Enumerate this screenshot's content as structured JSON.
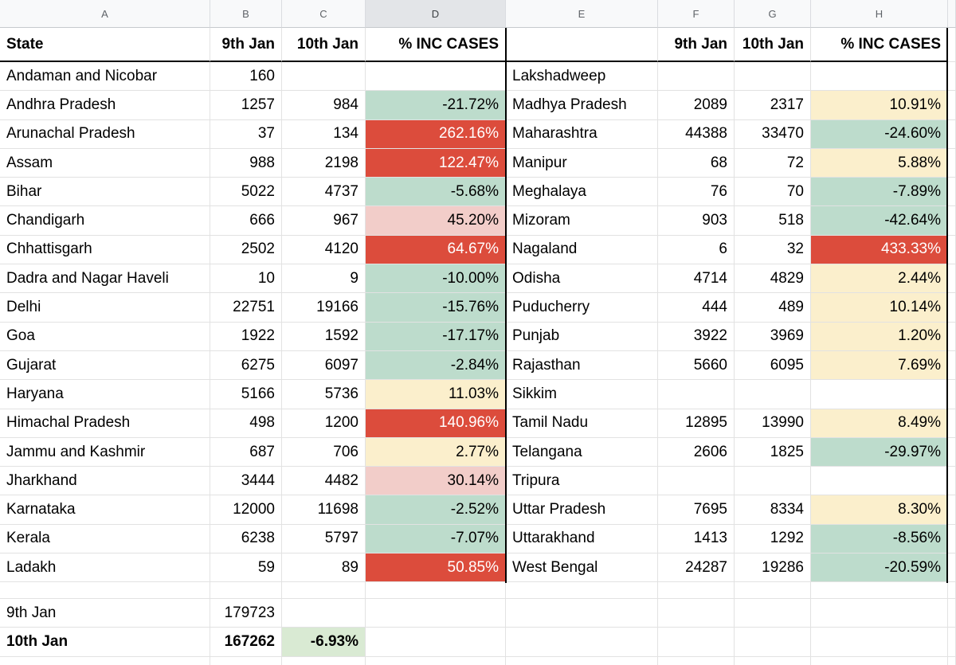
{
  "sheet": {
    "column_letters": [
      "A",
      "B",
      "C",
      "D",
      "E",
      "F",
      "G",
      "H"
    ],
    "selected_column_letter": "D",
    "left_header": [
      "State",
      "9th Jan",
      "10th Jan",
      "% INC CASES"
    ],
    "right_header": [
      "",
      "9th Jan",
      "10th Jan",
      "% INC CASES"
    ],
    "rows": [
      {
        "l": [
          "Andaman and Nicobar",
          "160",
          "",
          ""
        ],
        "lc": "",
        "r": [
          "Lakshadweep",
          "",
          "",
          ""
        ],
        "rc": ""
      },
      {
        "l": [
          "Andhra Pradesh",
          "1257",
          "984",
          "-21.72%"
        ],
        "lc": "green",
        "r": [
          "Madhya Pradesh",
          "2089",
          "2317",
          "10.91%"
        ],
        "rc": "yellow"
      },
      {
        "l": [
          "Arunachal Pradesh",
          "37",
          "134",
          "262.16%"
        ],
        "lc": "red",
        "r": [
          "Maharashtra",
          "44388",
          "33470",
          "-24.60%"
        ],
        "rc": "green"
      },
      {
        "l": [
          "Assam",
          "988",
          "2198",
          "122.47%"
        ],
        "lc": "red",
        "r": [
          "Manipur",
          "68",
          "72",
          "5.88%"
        ],
        "rc": "yellow"
      },
      {
        "l": [
          "Bihar",
          "5022",
          "4737",
          "-5.68%"
        ],
        "lc": "green",
        "r": [
          "Meghalaya",
          "76",
          "70",
          "-7.89%"
        ],
        "rc": "green"
      },
      {
        "l": [
          "Chandigarh",
          "666",
          "967",
          "45.20%"
        ],
        "lc": "pink",
        "r": [
          "Mizoram",
          "903",
          "518",
          "-42.64%"
        ],
        "rc": "green"
      },
      {
        "l": [
          "Chhattisgarh",
          "2502",
          "4120",
          "64.67%"
        ],
        "lc": "red",
        "r": [
          "Nagaland",
          "6",
          "32",
          "433.33%"
        ],
        "rc": "red"
      },
      {
        "l": [
          "Dadra and Nagar Haveli",
          "10",
          "9",
          "-10.00%"
        ],
        "lc": "green",
        "r": [
          "Odisha",
          "4714",
          "4829",
          "2.44%"
        ],
        "rc": "yellow"
      },
      {
        "l": [
          "Delhi",
          "22751",
          "19166",
          "-15.76%"
        ],
        "lc": "green",
        "r": [
          "Puducherry",
          "444",
          "489",
          "10.14%"
        ],
        "rc": "yellow"
      },
      {
        "l": [
          "Goa",
          "1922",
          "1592",
          "-17.17%"
        ],
        "lc": "green",
        "r": [
          "Punjab",
          "3922",
          "3969",
          "1.20%"
        ],
        "rc": "yellow"
      },
      {
        "l": [
          "Gujarat",
          "6275",
          "6097",
          "-2.84%"
        ],
        "lc": "green",
        "r": [
          "Rajasthan",
          "5660",
          "6095",
          "7.69%"
        ],
        "rc": "yellow"
      },
      {
        "l": [
          "Haryana",
          "5166",
          "5736",
          "11.03%"
        ],
        "lc": "yellow",
        "r": [
          "Sikkim",
          "",
          "",
          ""
        ],
        "rc": ""
      },
      {
        "l": [
          "Himachal Pradesh",
          "498",
          "1200",
          "140.96%"
        ],
        "lc": "red",
        "r": [
          "Tamil Nadu",
          "12895",
          "13990",
          "8.49%"
        ],
        "rc": "yellow"
      },
      {
        "l": [
          "Jammu and Kashmir",
          "687",
          "706",
          "2.77%"
        ],
        "lc": "yellow",
        "r": [
          "Telangana",
          "2606",
          "1825",
          "-29.97%"
        ],
        "rc": "green"
      },
      {
        "l": [
          "Jharkhand",
          "3444",
          "4482",
          "30.14%"
        ],
        "lc": "pink",
        "r": [
          "Tripura",
          "",
          "",
          ""
        ],
        "rc": ""
      },
      {
        "l": [
          "Karnataka",
          "12000",
          "11698",
          "-2.52%"
        ],
        "lc": "green",
        "r": [
          "Uttar Pradesh",
          "7695",
          "8334",
          "8.30%"
        ],
        "rc": "yellow"
      },
      {
        "l": [
          "Kerala",
          "6238",
          "5797",
          "-7.07%"
        ],
        "lc": "green",
        "r": [
          "Uttarakhand",
          "1413",
          "1292",
          "-8.56%"
        ],
        "rc": "green"
      },
      {
        "l": [
          "Ladakh",
          "59",
          "89",
          "50.85%"
        ],
        "lc": "red",
        "r": [
          "West Bengal",
          "24287",
          "19286",
          "-20.59%"
        ],
        "rc": "green"
      }
    ],
    "summary": {
      "row_9th": {
        "label": "9th Jan",
        "total": "179723",
        "pct": ""
      },
      "row_10th": {
        "label": "10th Jan",
        "total": "167262",
        "pct": "-6.93%"
      }
    }
  },
  "colors": {
    "red": "#dc4c3c",
    "pink": "#f2cdc9",
    "green": "#bddccc",
    "yellow": "#fbefcc",
    "summary_green": "#d9ead3",
    "header_bg": "#f8f9fa",
    "selected_header_bg": "#e3e5e8",
    "grid_line": "#e2e2e2",
    "border_black": "#000000"
  }
}
